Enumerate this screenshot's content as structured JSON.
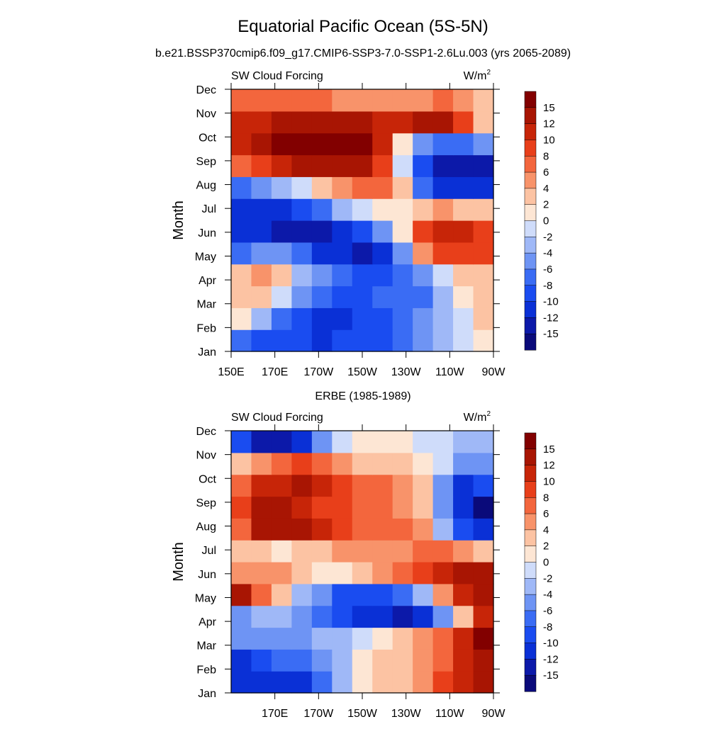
{
  "figure": {
    "title": "Equatorial Pacific Ocean (5S-5N)",
    "subtitle": "b.e21.BSSP370cmip6.f09_g17.CMIP6-SSP3-7.0-SSP1-2.6Lu.003 (yrs 2065-2089)",
    "panel2_title": "ERBE (1985-1989)"
  },
  "chart_data": [
    {
      "type": "heatmap",
      "name": "model",
      "label_left": "SW Cloud Forcing",
      "units": "W/m",
      "units_sup": "2",
      "ylabel": "Month",
      "xlabel": "",
      "x_ticks": [
        "150E",
        "170E",
        "170W",
        "150W",
        "130W",
        "110W",
        "90W"
      ],
      "y_ticks": [
        "Jan",
        "Feb",
        "Mar",
        "Apr",
        "May",
        "Jun",
        "Jul",
        "Aug",
        "Sep",
        "Oct",
        "Nov",
        "Dec"
      ],
      "xlim": [
        "150E",
        "90W"
      ],
      "x_columns": [
        "150E",
        "160E",
        "170E",
        "180",
        "170W",
        "160W",
        "150W",
        "140W",
        "130W",
        "120W",
        "110W",
        "100W",
        "90W"
      ],
      "months": [
        "Jan",
        "Feb",
        "Mar",
        "Apr",
        "May",
        "Jun",
        "Jul",
        "Aug",
        "Sep",
        "Oct",
        "Nov",
        "Dec"
      ],
      "values": [
        [
          -8,
          -10,
          -9,
          -10,
          -11,
          -10,
          -10,
          -9,
          -7,
          -5,
          -3,
          -1,
          1
        ],
        [
          1,
          -4,
          -8,
          -10,
          -11,
          -12,
          -10,
          -9,
          -8,
          -6,
          -3,
          -1,
          2
        ],
        [
          2,
          3,
          -2,
          -6,
          -8,
          -9,
          -9,
          -8,
          -7,
          -7,
          -4,
          0,
          2
        ],
        [
          2,
          4,
          2,
          -3,
          -6,
          -8,
          -9,
          -10,
          -8,
          -6,
          -2,
          2,
          3
        ],
        [
          -7,
          -5,
          -6,
          -8,
          -11,
          -12,
          -13,
          -12,
          -6,
          4,
          8,
          9,
          8
        ],
        [
          -11,
          -12,
          -13,
          -14,
          -13,
          -12,
          -9,
          -5,
          1,
          8,
          11,
          10,
          8
        ],
        [
          -12,
          -12,
          -11,
          -9,
          -7,
          -4,
          -2,
          0,
          1,
          3,
          4,
          3,
          2
        ],
        [
          -7,
          -6,
          -4,
          -2,
          2,
          5,
          6,
          6,
          2,
          -7,
          -11,
          -12,
          -11
        ],
        [
          6,
          8,
          10,
          12,
          13,
          13,
          12,
          9,
          -2,
          -10,
          -14,
          -14,
          -13
        ],
        [
          11,
          12,
          15,
          16,
          17,
          17,
          16,
          10,
          1,
          -5,
          -8,
          -7,
          -5
        ],
        [
          10,
          11,
          13,
          14,
          14,
          13,
          12,
          10,
          11,
          12,
          13,
          9,
          2
        ],
        [
          7,
          6,
          6,
          6,
          6,
          5,
          5,
          5,
          5,
          5,
          6,
          4,
          2
        ]
      ]
    },
    {
      "type": "heatmap",
      "name": "observations",
      "label_left": "SW Cloud Forcing",
      "units": "W/m",
      "units_sup": "2",
      "ylabel": "Month",
      "xlabel": "",
      "x_ticks": [
        "170E",
        "170W",
        "150W",
        "130W",
        "110W",
        "90W"
      ],
      "y_ticks": [
        "Jan",
        "Feb",
        "Mar",
        "Apr",
        "May",
        "Jun",
        "Jul",
        "Aug",
        "Sep",
        "Oct",
        "Nov",
        "Dec"
      ],
      "xlim": [
        "150E",
        "90W"
      ],
      "x_columns": [
        "150E",
        "160E",
        "170E",
        "180",
        "170W",
        "160W",
        "150W",
        "140W",
        "130W",
        "120W",
        "110W",
        "100W",
        "90W"
      ],
      "months": [
        "Jan",
        "Feb",
        "Mar",
        "Apr",
        "May",
        "Jun",
        "Jul",
        "Aug",
        "Sep",
        "Oct",
        "Nov",
        "Dec"
      ],
      "values": [
        [
          -12,
          -12,
          -12,
          -11,
          -8,
          -3,
          0,
          3,
          3,
          4,
          8,
          10,
          12
        ],
        [
          -12,
          -10,
          -8,
          -8,
          -6,
          -4,
          0,
          2,
          3,
          4,
          6,
          10,
          14
        ],
        [
          -6,
          -6,
          -6,
          -6,
          -4,
          -3,
          -2,
          0,
          3,
          5,
          6,
          10,
          16
        ],
        [
          -6,
          -4,
          -4,
          -5,
          -7,
          -10,
          -12,
          -12,
          -14,
          -12,
          -6,
          2,
          10
        ],
        [
          12,
          6,
          2,
          -4,
          -6,
          -9,
          -10,
          -10,
          -8,
          -4,
          4,
          10,
          14
        ],
        [
          5,
          4,
          4,
          2,
          0,
          1,
          2,
          4,
          6,
          8,
          11,
          14,
          14
        ],
        [
          3,
          2,
          1,
          2,
          3,
          4,
          5,
          5,
          5,
          6,
          6,
          4,
          3
        ],
        [
          6,
          13,
          14,
          12,
          10,
          8,
          7,
          7,
          6,
          4,
          -3,
          -9,
          -12
        ],
        [
          8,
          14,
          14,
          10,
          9,
          8,
          7,
          7,
          5,
          2,
          -6,
          -12,
          -16
        ],
        [
          6,
          10,
          11,
          12,
          10,
          8,
          7,
          7,
          5,
          2,
          -5,
          -11,
          -10
        ],
        [
          2,
          4,
          6,
          8,
          6,
          4,
          3,
          3,
          2,
          1,
          -2,
          -6,
          -6
        ],
        [
          -10,
          -13,
          -14,
          -12,
          -6,
          -2,
          0,
          1,
          0,
          -1,
          -2,
          -3,
          -3
        ]
      ]
    }
  ],
  "colorbar": {
    "labels": [
      "15",
      "12",
      "10",
      "8",
      "6",
      "4",
      "2",
      "0",
      "-2",
      "-4",
      "-6",
      "-8",
      "-10",
      "-12",
      "-15"
    ],
    "levels": [
      -15,
      -12,
      -10,
      -8,
      -6,
      -4,
      -2,
      0,
      2,
      4,
      6,
      8,
      10,
      12,
      15
    ],
    "colors": [
      "#0a0a7a",
      "#0c19a9",
      "#0a30d6",
      "#1a4cf0",
      "#3a6cf4",
      "#6e94f4",
      "#9fb8f7",
      "#cfdcfa",
      "#fde6d4",
      "#fcc3a3",
      "#f8936a",
      "#f3663d",
      "#e83f1a",
      "#c72508",
      "#a81503",
      "#820000"
    ]
  }
}
